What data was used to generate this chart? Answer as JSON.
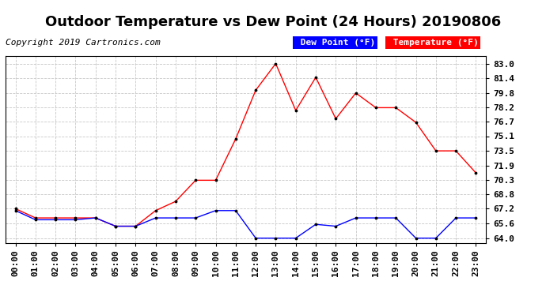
{
  "title": "Outdoor Temperature vs Dew Point (24 Hours) 20190806",
  "copyright": "Copyright 2019 Cartronics.com",
  "hours": [
    0,
    1,
    2,
    3,
    4,
    5,
    6,
    7,
    8,
    9,
    10,
    11,
    12,
    13,
    14,
    15,
    16,
    17,
    18,
    19,
    20,
    21,
    22,
    23
  ],
  "temperature": [
    67.2,
    66.2,
    66.2,
    66.2,
    66.2,
    65.3,
    65.3,
    67.0,
    68.0,
    70.3,
    70.3,
    74.8,
    80.1,
    83.0,
    77.9,
    81.5,
    77.0,
    79.8,
    78.2,
    78.2,
    76.6,
    73.5,
    73.5,
    71.1
  ],
  "dew_point": [
    67.0,
    66.0,
    66.0,
    66.0,
    66.2,
    65.3,
    65.3,
    66.2,
    66.2,
    66.2,
    67.0,
    67.0,
    64.0,
    64.0,
    64.0,
    65.5,
    65.3,
    66.2,
    66.2,
    66.2,
    64.0,
    64.0,
    66.2,
    66.2
  ],
  "temp_color": "#ff0000",
  "dew_color": "#0000ff",
  "legend_dew_bg": "#0000ff",
  "legend_temp_bg": "#ff0000",
  "background_color": "#ffffff",
  "grid_color": "#c8c8c8",
  "yticks": [
    64.0,
    65.6,
    67.2,
    68.8,
    70.3,
    71.9,
    73.5,
    75.1,
    76.7,
    78.2,
    79.8,
    81.4,
    83.0
  ],
  "ylim": [
    63.5,
    83.8
  ],
  "title_fontsize": 13,
  "copyright_fontsize": 8,
  "tick_fontsize": 8
}
